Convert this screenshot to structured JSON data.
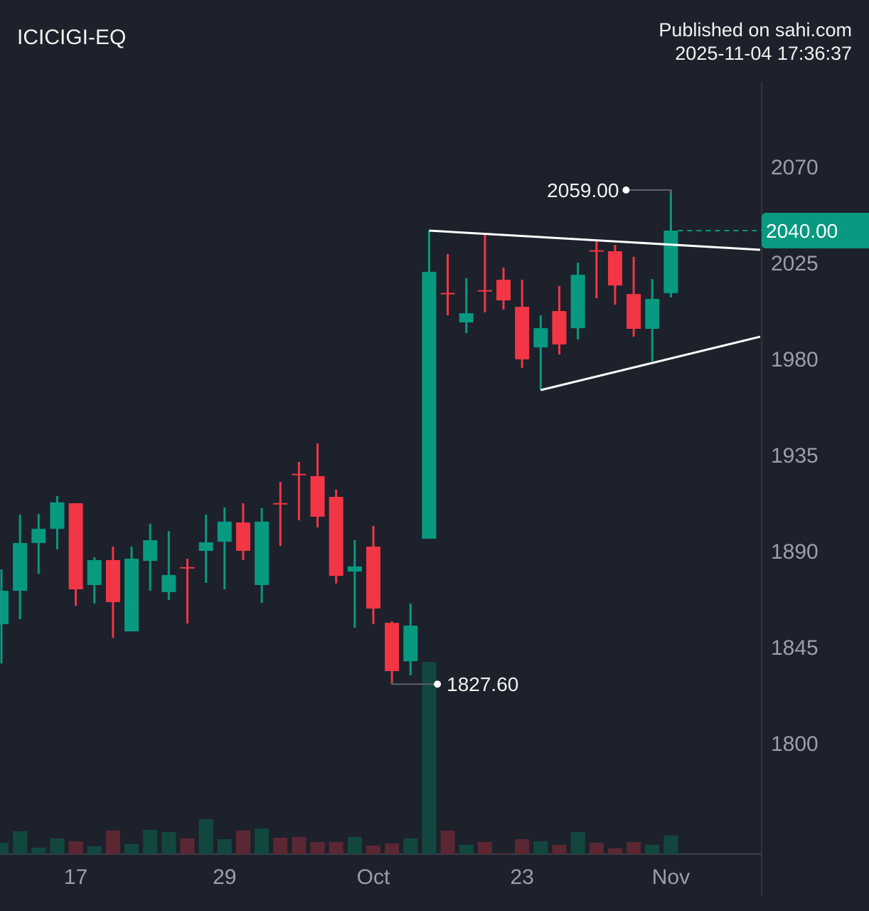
{
  "header": {
    "symbol": "ICICIGI-EQ",
    "published": "Published on sahi.com",
    "timestamp": "2025-11-04 17:36:37"
  },
  "chart_data": {
    "type": "candlestick",
    "title": "ICICIGI-EQ",
    "colors": {
      "up": "#089981",
      "down": "#f23645",
      "up_volume": "#12473f",
      "down_volume": "#5a2733",
      "background": "#1d212b",
      "trendline": "#ffffff"
    },
    "y_axis": {
      "ticks": [
        2070,
        2025,
        1980,
        1935,
        1890,
        1845,
        1800
      ],
      "range": [
        1770,
        2095
      ],
      "position": "right"
    },
    "x_axis": {
      "tick_labels": [
        {
          "index": 4,
          "label": "17"
        },
        {
          "index": 12,
          "label": "29"
        },
        {
          "index": 20,
          "label": "Oct"
        },
        {
          "index": 28,
          "label": "23"
        },
        {
          "index": 36,
          "label": "Nov"
        }
      ]
    },
    "candles": [
      {
        "o": 1855.7,
        "h": 1881.3,
        "l": 1837.3,
        "c": 1871.3
      },
      {
        "o": 1871.3,
        "h": 1907,
        "l": 1858,
        "c": 1893.7
      },
      {
        "o": 1893.7,
        "h": 1907.3,
        "l": 1879.3,
        "c": 1900.3
      },
      {
        "o": 1900.3,
        "h": 1915.7,
        "l": 1890.7,
        "c": 1912.7
      },
      {
        "o": 1912.3,
        "h": 1912.3,
        "l": 1864.3,
        "c": 1872
      },
      {
        "o": 1874,
        "h": 1887,
        "l": 1865.3,
        "c": 1885.7
      },
      {
        "o": 1885.7,
        "h": 1892,
        "l": 1849.3,
        "c": 1866
      },
      {
        "o": 1852.3,
        "h": 1892,
        "l": 1852.3,
        "c": 1886.3
      },
      {
        "o": 1885.3,
        "h": 1902.7,
        "l": 1871.3,
        "c": 1895
      },
      {
        "o": 1870.7,
        "h": 1899.3,
        "l": 1867,
        "c": 1878.7
      },
      {
        "o": 1882.4,
        "h": 1886.3,
        "l": 1856,
        "c": 1882.3
      },
      {
        "o": 1890,
        "h": 1907,
        "l": 1875,
        "c": 1894
      },
      {
        "o": 1894.3,
        "h": 1910.3,
        "l": 1872,
        "c": 1903.7
      },
      {
        "o": 1903.3,
        "h": 1912.3,
        "l": 1885.7,
        "c": 1890
      },
      {
        "o": 1874,
        "h": 1910,
        "l": 1865.7,
        "c": 1903.7
      },
      {
        "o": 1912.4,
        "h": 1922.3,
        "l": 1892.3,
        "c": 1912.3
      },
      {
        "o": 1926.1,
        "h": 1931.7,
        "l": 1904.3,
        "c": 1926
      },
      {
        "o": 1925,
        "h": 1940.3,
        "l": 1901,
        "c": 1906
      },
      {
        "o": 1915.3,
        "h": 1918.7,
        "l": 1874.7,
        "c": 1878.3
      },
      {
        "o": 1880.3,
        "h": 1895,
        "l": 1854,
        "c": 1882.7
      },
      {
        "o": 1892,
        "h": 1901.7,
        "l": 1855.7,
        "c": 1863
      },
      {
        "o": 1856.3,
        "h": 1857,
        "l": 1827.6,
        "c": 1833.7
      },
      {
        "o": 1838.3,
        "h": 1865.3,
        "l": 1831.7,
        "c": 1855
      },
      {
        "o": 1895.7,
        "h": 2040,
        "l": 1895.7,
        "c": 2020.7
      },
      {
        "o": 2010.8,
        "h": 2029,
        "l": 2000.3,
        "c": 2010.7
      },
      {
        "o": 1997,
        "h": 2017.7,
        "l": 1992,
        "c": 2001.3
      },
      {
        "o": 2012.1,
        "h": 2038,
        "l": 2001.7,
        "c": 2012
      },
      {
        "o": 2017,
        "h": 2022.7,
        "l": 2003,
        "c": 2007.3
      },
      {
        "o": 2004.3,
        "h": 2017,
        "l": 1975.7,
        "c": 1979.7
      },
      {
        "o": 1985.3,
        "h": 2000.3,
        "l": 1965.3,
        "c": 1994.3
      },
      {
        "o": 2002.3,
        "h": 2014,
        "l": 1982,
        "c": 1986.7
      },
      {
        "o": 1994.3,
        "h": 2025,
        "l": 1989,
        "c": 2019.3
      },
      {
        "o": 2030.8,
        "h": 2035,
        "l": 2008.3,
        "c": 2030.7
      },
      {
        "o": 2030.3,
        "h": 2033.3,
        "l": 2005.3,
        "c": 2014.3
      },
      {
        "o": 2010.3,
        "h": 2027.7,
        "l": 1990.3,
        "c": 1994
      },
      {
        "o": 1994,
        "h": 2017.3,
        "l": 1978.7,
        "c": 2008
      },
      {
        "o": 2010.7,
        "h": 2059,
        "l": 2008.7,
        "c": 2040
      }
    ],
    "volume_relative": [
      16,
      32,
      9,
      22,
      18,
      11,
      33,
      14,
      34,
      31,
      22,
      49,
      21,
      33,
      36,
      23,
      24,
      17,
      17,
      24,
      12,
      15,
      22,
      270,
      33,
      13,
      17,
      1,
      21,
      18,
      13,
      31,
      16,
      8,
      17,
      13,
      26
    ],
    "trendlines": [
      {
        "from": {
          "index": 23,
          "price": 2040
        },
        "to": {
          "index": 40.8,
          "price": 2031
        }
      },
      {
        "from": {
          "index": 29,
          "price": 1965.3
        },
        "to": {
          "index": 40.8,
          "price": 1990.3
        }
      }
    ],
    "annotations": {
      "high": {
        "index": 36,
        "price": 2059,
        "label": "2059.00"
      },
      "low": {
        "index": 21,
        "price": 1827.6,
        "label": "1827.60"
      }
    },
    "last_price": {
      "value": 2040,
      "label": "2040.00",
      "color": "#089981"
    }
  }
}
